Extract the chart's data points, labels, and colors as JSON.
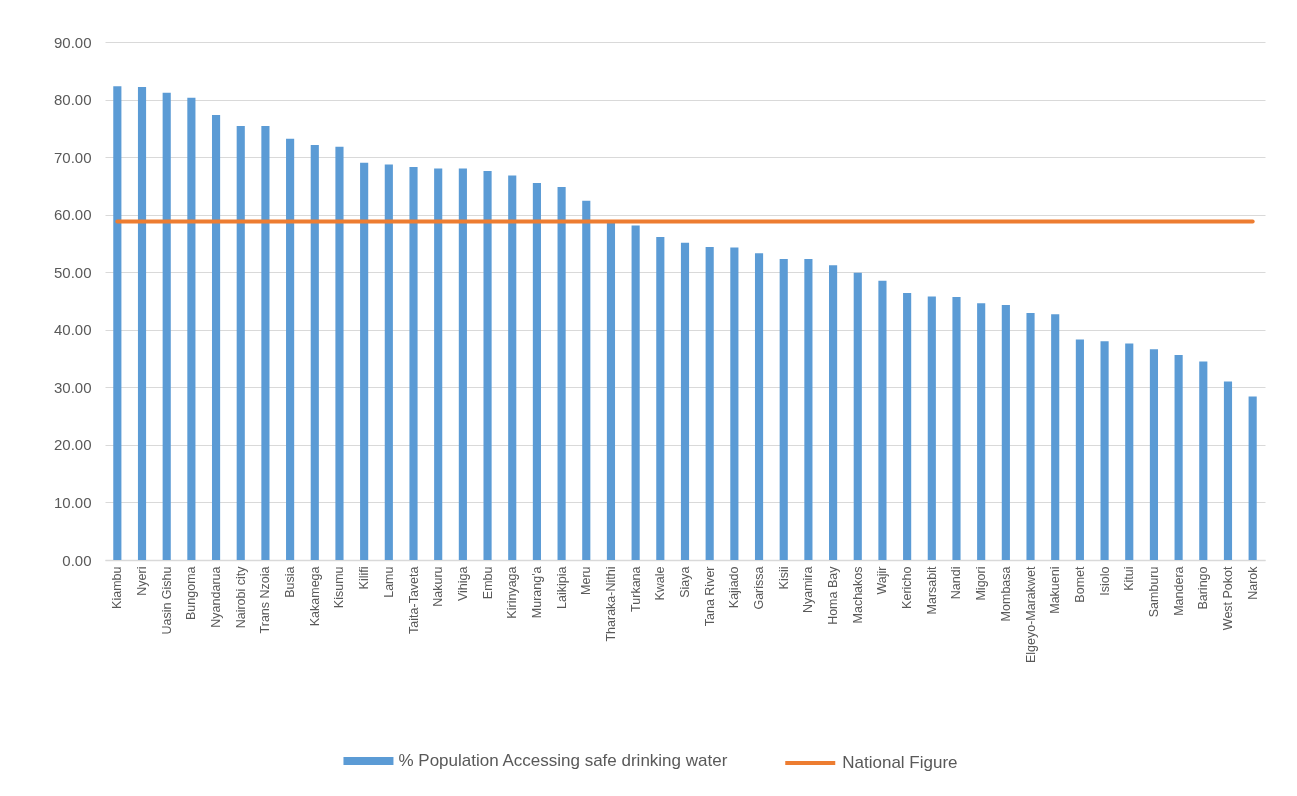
{
  "chart_data": {
    "type": "bar",
    "categories": [
      "Kiambu",
      "Nyeri",
      "Uasin Gishu",
      "Bungoma",
      "Nyandarua",
      "Nairobi city",
      "Trans Nzoia",
      "Busia",
      "Kakamega",
      "Kisumu",
      "Kilifi",
      "Lamu",
      "Taita-Taveta",
      "Nakuru",
      "Vihiga",
      "Embu",
      "Kirinyaga",
      "Murang'a",
      "Laikipia",
      "Meru",
      "Tharaka-Nithi",
      "Turkana",
      "Kwale",
      "Siaya",
      "Tana River",
      "Kajiado",
      "Garissa",
      "Kisii",
      "Nyamira",
      "Homa Bay",
      "Machakos",
      "Wajir",
      "Kericho",
      "Marsabit",
      "Nandi",
      "Migori",
      "Mombasa",
      "Elgeyo-Marakwet",
      "Makueni",
      "Bomet",
      "Isiolo",
      "Kitui",
      "Samburu",
      "Mandera",
      "Baringo",
      "West Pokot",
      "Narok"
    ],
    "series": [
      {
        "name": "% Population Accessing safe drinking water",
        "color": "#5b9bd5",
        "values": [
          82.3,
          82.2,
          81.2,
          80.3,
          77.3,
          75.4,
          75.4,
          73.2,
          72.1,
          71.8,
          69.0,
          68.7,
          68.3,
          68.0,
          68.0,
          67.6,
          66.8,
          65.5,
          64.8,
          62.4,
          58.6,
          58.1,
          56.1,
          55.1,
          54.4,
          54.3,
          53.3,
          52.3,
          52.3,
          51.2,
          49.9,
          48.5,
          46.4,
          45.8,
          45.7,
          44.6,
          44.3,
          42.9,
          42.7,
          38.3,
          38.0,
          37.6,
          36.6,
          35.6,
          34.5,
          31.0,
          28.4
        ]
      },
      {
        "name": "National Figure",
        "type": "line",
        "color": "#ed7d31",
        "values": [
          58.8,
          58.8,
          58.8,
          58.8,
          58.8,
          58.8,
          58.8,
          58.8,
          58.8,
          58.8,
          58.8,
          58.8,
          58.8,
          58.8,
          58.8,
          58.8,
          58.8,
          58.8,
          58.8,
          58.8,
          58.8,
          58.8,
          58.8,
          58.8,
          58.8,
          58.8,
          58.8,
          58.8,
          58.8,
          58.8,
          58.8,
          58.8,
          58.8,
          58.8,
          58.8,
          58.8,
          58.8,
          58.8,
          58.8,
          58.8,
          58.8,
          58.8,
          58.8,
          58.8,
          58.8,
          58.8,
          58.8
        ]
      }
    ],
    "ylim": [
      0,
      90
    ],
    "yticks": [
      {
        "value": 0,
        "label": "0.00"
      },
      {
        "value": 10,
        "label": "10.00"
      },
      {
        "value": 20,
        "label": "20.00"
      },
      {
        "value": 30,
        "label": "30.00"
      },
      {
        "value": 40,
        "label": "40.00"
      },
      {
        "value": 50,
        "label": "50.00"
      },
      {
        "value": 60,
        "label": "60.00"
      },
      {
        "value": 70,
        "label": "70.00"
      },
      {
        "value": 80,
        "label": "80.00"
      },
      {
        "value": 90,
        "label": "90.00"
      }
    ],
    "grid": "y",
    "legend": "bottom"
  }
}
